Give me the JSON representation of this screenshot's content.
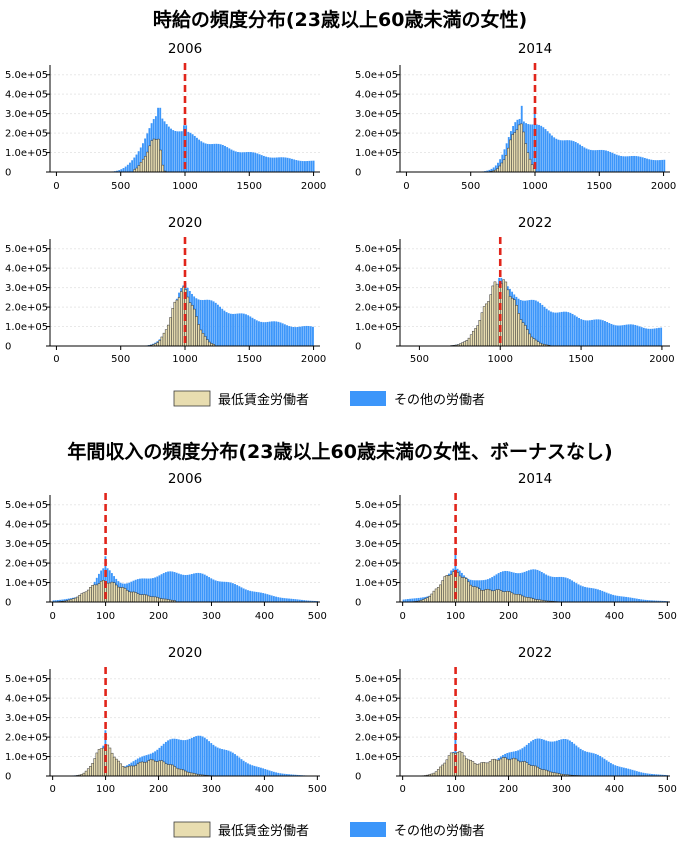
{
  "colors": {
    "minimum_wage_workers": "#e8ddb0",
    "minimum_wage_edge": "#3a3a3a",
    "other_workers": "#3c96fa",
    "minimum_wage_line": "#e1251b",
    "grid": "#e8e8e8"
  },
  "chart_data": [
    {
      "type": "bar",
      "title": "時給の頻度分布(23歳以上60歳未満の女性)",
      "legend": {
        "position": "bottom",
        "entries": [
          "最低賃金労働者",
          "その他の労働者"
        ]
      },
      "ytick_labels": [
        "0",
        "1.0e+05",
        "2.0e+05",
        "3.0e+05",
        "4.0e+05",
        "5.0e+05"
      ],
      "ylim": [
        0,
        550000
      ],
      "grid": true,
      "panels": [
        {
          "label": "2006",
          "xlim": [
            -50,
            2050
          ],
          "xticks": [
            0,
            500,
            1000,
            1500,
            2000
          ],
          "ref_line": 1000,
          "series": [
            {
              "name": "最低賃金労働者",
              "range": [
                600,
                850
              ],
              "peak_x": 790,
              "peak_y": 180000,
              "left_width": 80,
              "right_width": 20
            },
            {
              "name": "その他の労働者",
              "start": 380,
              "end": 2000,
              "rise_width": 120,
              "peak_x": 800,
              "peak_y": 275000,
              "tail_y": 25000,
              "spikes": [
                {
                  "x": 800,
                  "y": 330000
                },
                {
                  "x": 1000,
                  "y": 240000
                }
              ]
            }
          ]
        },
        {
          "label": "2014",
          "xlim": [
            -50,
            2050
          ],
          "xticks": [
            0,
            500,
            1000,
            1500,
            2000
          ],
          "ref_line": 1000,
          "series": [
            {
              "name": "最低賃金労働者",
              "range": [
                650,
                1000
              ],
              "peak_x": 880,
              "peak_y": 240000,
              "left_width": 75,
              "right_width": 50
            },
            {
              "name": "その他の労働者",
              "start": 520,
              "end": 2000,
              "rise_width": 100,
              "peak_x": 900,
              "peak_y": 285000,
              "tail_y": 30000,
              "spikes": [
                {
                  "x": 900,
                  "y": 340000
                },
                {
                  "x": 1000,
                  "y": 330000
                }
              ]
            }
          ]
        },
        {
          "label": "2020",
          "xlim": [
            -50,
            2050
          ],
          "xticks": [
            0,
            500,
            1000,
            1500,
            2000
          ],
          "ref_line": 1000,
          "series": [
            {
              "name": "最低賃金労働者",
              "range": [
                560,
                1230
              ],
              "peak_x": 985,
              "peak_y": 285000,
              "left_width": 85,
              "right_width": 90
            },
            {
              "name": "その他の労働者",
              "start": 560,
              "end": 2000,
              "rise_width": 100,
              "peak_x": 1010,
              "peak_y": 300000,
              "tail_y": 65000,
              "spikes": [
                {
                  "x": 1000,
                  "y": 325000
                }
              ]
            }
          ]
        },
        {
          "label": "2022",
          "xlim": [
            380,
            2050
          ],
          "xticks": [
            500,
            1000,
            1500,
            2000
          ],
          "ref_line": 1000,
          "series": [
            {
              "name": "最低賃金労働者",
              "range": [
                600,
                1300
              ],
              "peak_x": 1000,
              "peak_y": 330000,
              "left_width": 95,
              "right_width": 100
            },
            {
              "name": "その他の労働者",
              "start": 600,
              "end": 2000,
              "rise_width": 110,
              "peak_x": 1030,
              "peak_y": 300000,
              "tail_y": 60000,
              "spikes": [
                {
                  "x": 1000,
                  "y": 350000
                }
              ]
            }
          ]
        }
      ]
    },
    {
      "type": "bar",
      "title": "年間収入の頻度分布(23歳以上60歳未満の女性、ボーナスなし)",
      "legend": {
        "position": "bottom",
        "entries": [
          "最低賃金労働者",
          "その他の労働者"
        ]
      },
      "ytick_labels": [
        "0",
        "1.0e+05",
        "2.0e+05",
        "3.0e+05",
        "4.0e+05",
        "5.0e+05"
      ],
      "ylim": [
        0,
        550000
      ],
      "grid": true,
      "panels": [
        {
          "label": "2006",
          "xlim": [
            -5,
            505
          ],
          "xticks": [
            0,
            100,
            200,
            300,
            400,
            500
          ],
          "ref_line": 100,
          "series": [
            {
              "name": "最低賃金労働者",
              "range": [
                0,
                230
              ],
              "components": [
                {
                  "mu": 95,
                  "sigma": 30,
                  "amp": 95000
                },
                {
                  "mu": 160,
                  "sigma": 40,
                  "amp": 35000
                }
              ]
            },
            {
              "name": "その他の労働者",
              "range": [
                0,
                500
              ],
              "components": [
                {
                  "mu": 98,
                  "sigma": 18,
                  "amp": 110000
                },
                {
                  "mu": 240,
                  "sigma": 100,
                  "amp": 150000
                }
              ],
              "spikes": [
                {
                  "x": 100,
                  "y": 235000
                }
              ]
            }
          ]
        },
        {
          "label": "2014",
          "xlim": [
            -5,
            505
          ],
          "xticks": [
            0,
            100,
            200,
            300,
            400,
            500
          ],
          "ref_line": 100,
          "series": [
            {
              "name": "最低賃金労働者",
              "range": [
                0,
                290
              ],
              "components": [
                {
                  "mu": 95,
                  "sigma": 25,
                  "amp": 140000
                },
                {
                  "mu": 175,
                  "sigma": 45,
                  "amp": 60000
                }
              ]
            },
            {
              "name": "その他の労働者",
              "range": [
                0,
                500
              ],
              "components": [
                {
                  "mu": 98,
                  "sigma": 14,
                  "amp": 120000
                },
                {
                  "mu": 230,
                  "sigma": 100,
                  "amp": 160000
                }
              ],
              "spikes": [
                {
                  "x": 100,
                  "y": 250000
                }
              ]
            }
          ]
        },
        {
          "label": "2020",
          "xlim": [
            -5,
            505
          ],
          "xticks": [
            0,
            100,
            200,
            300,
            400,
            500
          ],
          "ref_line": 100,
          "series": [
            {
              "name": "最低賃金労働者",
              "range": [
                0,
                320
              ],
              "components": [
                {
                  "mu": 98,
                  "sigma": 18,
                  "amp": 150000
                },
                {
                  "mu": 190,
                  "sigma": 40,
                  "amp": 80000
                }
              ]
            },
            {
              "name": "その他の労働者",
              "range": [
                0,
                500
              ],
              "components": [
                {
                  "mu": 98,
                  "sigma": 12,
                  "amp": 130000
                },
                {
                  "mu": 260,
                  "sigma": 75,
                  "amp": 200000
                }
              ],
              "spikes": [
                {
                  "x": 100,
                  "y": 235000
                }
              ]
            }
          ]
        },
        {
          "label": "2022",
          "xlim": [
            -5,
            505
          ],
          "xticks": [
            0,
            100,
            200,
            300,
            400,
            500
          ],
          "ref_line": 100,
          "series": [
            {
              "name": "最低賃金労働者",
              "range": [
                0,
                350
              ],
              "components": [
                {
                  "mu": 100,
                  "sigma": 20,
                  "amp": 110000
                },
                {
                  "mu": 195,
                  "sigma": 50,
                  "amp": 90000
                }
              ]
            },
            {
              "name": "その他の労働者",
              "range": [
                0,
                500
              ],
              "components": [
                {
                  "mu": 98,
                  "sigma": 13,
                  "amp": 120000
                },
                {
                  "mu": 280,
                  "sigma": 80,
                  "amp": 190000
                }
              ],
              "spikes": [
                {
                  "x": 100,
                  "y": 225000
                }
              ]
            }
          ]
        }
      ]
    }
  ]
}
